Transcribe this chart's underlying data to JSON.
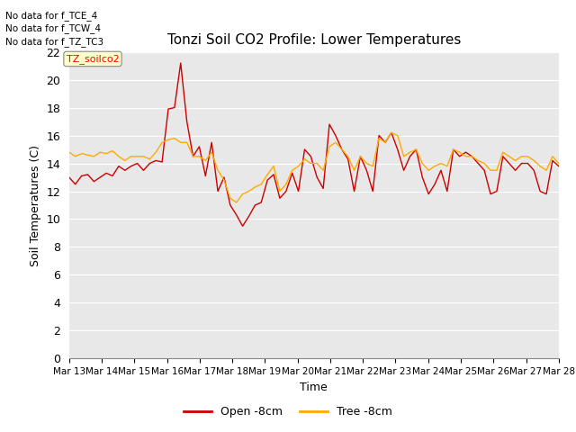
{
  "title": "Tonzi Soil CO2 Profile: Lower Temperatures",
  "xlabel": "Time",
  "ylabel": "Soil Temperatures (C)",
  "ylim": [
    0,
    22
  ],
  "yticks": [
    0,
    2,
    4,
    6,
    8,
    10,
    12,
    14,
    16,
    18,
    20,
    22
  ],
  "bg_color": "#e8e8e8",
  "annotations": [
    "No data for f_TCE_4",
    "No data for f_TCW_4",
    "No data for f_TZ_TC3"
  ],
  "tooltip_label": "TZ_soilco2",
  "legend_label1": "Open -8cm",
  "legend_label2": "Tree -8cm",
  "line_color1": "#cc0000",
  "line_color2": "#ffaa00",
  "xtick_labels": [
    "Mar 13",
    "Mar 14",
    "Mar 15",
    "Mar 16",
    "Mar 17",
    "Mar 18",
    "Mar 19",
    "Mar 20",
    "Mar 21",
    "Mar 22",
    "Mar 23",
    "Mar 24",
    "Mar 25",
    "Mar 26",
    "Mar 27",
    "Mar 28"
  ],
  "open_8cm": [
    13.0,
    12.5,
    13.1,
    13.2,
    12.7,
    13.0,
    13.3,
    13.1,
    13.8,
    13.5,
    13.8,
    14.0,
    13.5,
    14.0,
    14.2,
    14.1,
    17.9,
    18.0,
    21.2,
    17.0,
    14.5,
    15.2,
    13.1,
    15.5,
    12.0,
    13.0,
    11.0,
    10.3,
    9.5,
    10.2,
    11.0,
    11.2,
    12.8,
    13.2,
    11.5,
    12.0,
    13.3,
    12.0,
    15.0,
    14.5,
    13.0,
    12.2,
    16.8,
    16.0,
    15.0,
    14.3,
    12.0,
    14.5,
    13.5,
    12.0,
    16.0,
    15.5,
    16.2,
    15.0,
    13.5,
    14.5,
    15.0,
    13.0,
    11.8,
    12.5,
    13.5,
    12.0,
    15.0,
    14.5,
    14.8,
    14.5,
    14.0,
    13.5,
    11.8,
    12.0,
    14.5,
    14.0,
    13.5,
    14.0,
    14.0,
    13.5,
    12.0,
    11.8,
    14.2,
    13.8
  ],
  "tree_8cm": [
    14.8,
    14.5,
    14.7,
    14.6,
    14.5,
    14.8,
    14.7,
    14.9,
    14.5,
    14.2,
    14.5,
    14.5,
    14.5,
    14.3,
    14.8,
    15.5,
    15.7,
    15.8,
    15.5,
    15.5,
    14.5,
    14.5,
    14.2,
    14.8,
    13.5,
    12.8,
    11.5,
    11.2,
    11.8,
    12.0,
    12.3,
    12.5,
    13.2,
    13.8,
    12.0,
    12.5,
    13.5,
    13.8,
    14.3,
    14.0,
    14.0,
    13.5,
    15.2,
    15.5,
    15.0,
    14.5,
    13.5,
    14.5,
    14.0,
    13.8,
    15.8,
    15.5,
    16.2,
    16.0,
    14.5,
    14.8,
    15.0,
    14.0,
    13.5,
    13.8,
    14.0,
    13.8,
    15.0,
    14.8,
    14.5,
    14.5,
    14.2,
    14.0,
    13.5,
    13.5,
    14.8,
    14.5,
    14.2,
    14.5,
    14.5,
    14.2,
    13.8,
    13.5,
    14.5,
    14.0
  ]
}
